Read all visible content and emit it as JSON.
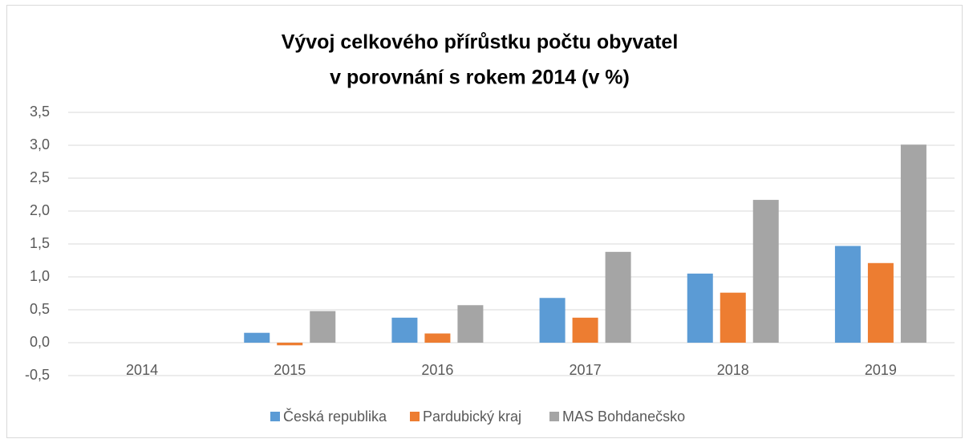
{
  "chart_data": {
    "type": "bar",
    "title": [
      "Vývoj celkového přírůstku počtu obyvatel",
      "v porovnání s rokem 2014 (v %)"
    ],
    "categories": [
      "2014",
      "2015",
      "2016",
      "2017",
      "2018",
      "2019"
    ],
    "series": [
      {
        "name": "Česká republika",
        "color": "#5b9bd5",
        "values": [
          0,
          0.15,
          0.38,
          0.68,
          1.05,
          1.47
        ]
      },
      {
        "name": "Pardubický kraj",
        "color": "#ed7d31",
        "values": [
          0,
          -0.04,
          0.14,
          0.38,
          0.76,
          1.21
        ]
      },
      {
        "name": "MAS Bohdanečsko",
        "color": "#a5a5a5",
        "values": [
          0,
          0.48,
          0.57,
          1.38,
          2.17,
          3.01
        ]
      }
    ],
    "ylim": [
      -0.5,
      3.5
    ],
    "yticks": [
      {
        "value": -0.5,
        "label": "-0,5"
      },
      {
        "value": 0,
        "label": "0,0"
      },
      {
        "value": 0.5,
        "label": "0,5"
      },
      {
        "value": 1,
        "label": "1,0"
      },
      {
        "value": 1.5,
        "label": "1,5"
      },
      {
        "value": 2,
        "label": "2,0"
      },
      {
        "value": 2.5,
        "label": "2,5"
      },
      {
        "value": 3,
        "label": "3,0"
      },
      {
        "value": 3.5,
        "label": "3,5"
      }
    ],
    "grid": true,
    "legend": "bottom"
  }
}
